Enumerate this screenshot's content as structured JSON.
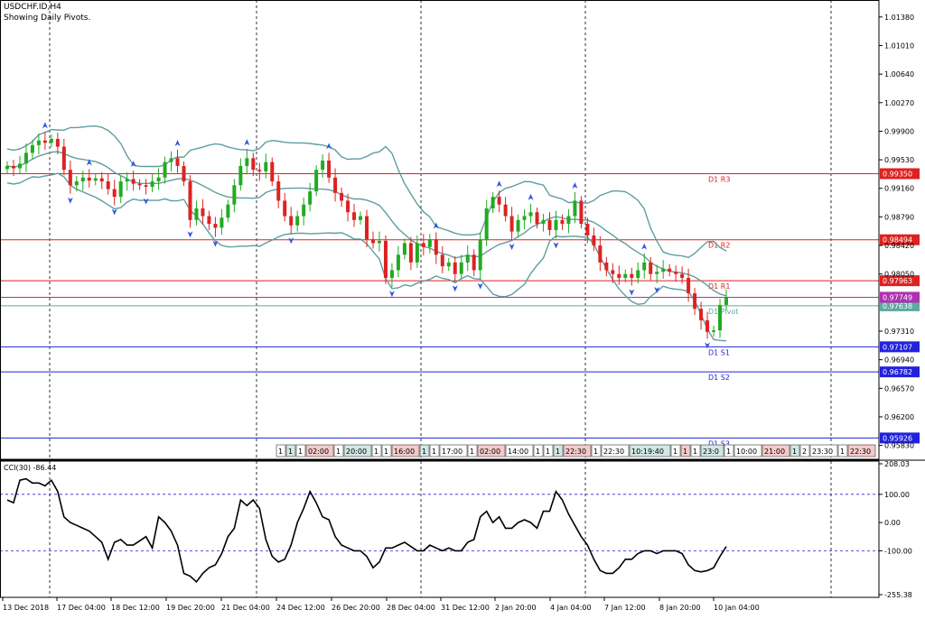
{
  "chart_data": {
    "type": "candlestick",
    "title": "USDCHF.ID,H4",
    "subtitle": "Showing Daily Pivots.",
    "price_axis": {
      "ylim": [
        0.9565,
        1.016
      ],
      "ticks": [
        "1.01380",
        "1.01010",
        "1.00640",
        "1.00270",
        "0.99900",
        "0.99530",
        "0.99160",
        "0.98790",
        "0.98420",
        "0.98050",
        "0.97310",
        "0.96940",
        "0.96570",
        "0.96200",
        "0.95830"
      ]
    },
    "x_axis": {
      "ticks": [
        "13 Dec 2018",
        "17 Dec 04:00",
        "18 Dec 12:00",
        "19 Dec 20:00",
        "21 Dec 04:00",
        "24 Dec 12:00",
        "26 Dec 20:00",
        "28 Dec 04:00",
        "31 Dec 12:00",
        "2 Jan 20:00",
        "4 Jan 04:00",
        "7 Jan 12:00",
        "8 Jan 20:00",
        "10 Jan 04:00"
      ]
    },
    "candles_close": [
      0.9945,
      0.9942,
      0.9948,
      0.9962,
      0.9972,
      0.9978,
      0.9975,
      0.998,
      0.997,
      0.994,
      0.992,
      0.9925,
      0.993,
      0.9926,
      0.9929,
      0.9925,
      0.9915,
      0.9905,
      0.9925,
      0.9928,
      0.9922,
      0.992,
      0.9918,
      0.9925,
      0.993,
      0.995,
      0.9955,
      0.9945,
      0.9925,
      0.9875,
      0.989,
      0.988,
      0.987,
      0.9865,
      0.9878,
      0.9895,
      0.992,
      0.9945,
      0.9955,
      0.994,
      0.9938,
      0.995,
      0.9925,
      0.99,
      0.988,
      0.9868,
      0.988,
      0.9895,
      0.9912,
      0.994,
      0.9952,
      0.993,
      0.991,
      0.99,
      0.9885,
      0.9875,
      0.988,
      0.985,
      0.9845,
      0.9848,
      0.98,
      0.981,
      0.983,
      0.9845,
      0.982,
      0.9845,
      0.984,
      0.985,
      0.983,
      0.9815,
      0.982,
      0.9805,
      0.982,
      0.983,
      0.981,
      0.985,
      0.989,
      0.9905,
      0.9895,
      0.988,
      0.986,
      0.9875,
      0.988,
      0.9885,
      0.987,
      0.9875,
      0.9862,
      0.9875,
      0.987,
      0.988,
      0.99,
      0.987,
      0.9855,
      0.9842,
      0.982,
      0.981,
      0.9805,
      0.98,
      0.9805,
      0.98,
      0.981,
      0.982,
      0.9805,
      0.9808,
      0.9812,
      0.9808,
      0.9805,
      0.98,
      0.978,
      0.976,
      0.9745,
      0.973,
      0.9732,
      0.9765,
      0.9775
    ],
    "indicator": {
      "label": "CCI(30) -86.44",
      "ylim": [
        -255.38,
        208.03
      ],
      "ticks": [
        "208.03",
        "100.00",
        "0.00",
        "-100.00",
        "-255.38"
      ],
      "values": [
        80,
        70,
        150,
        155,
        140,
        140,
        130,
        150,
        110,
        20,
        0,
        -10,
        -20,
        -30,
        -50,
        -70,
        -130,
        -70,
        -60,
        -80,
        -80,
        -65,
        -50,
        -90,
        20,
        0,
        -30,
        -80,
        -180,
        -190,
        -210,
        -180,
        -160,
        -150,
        -110,
        -50,
        -20,
        80,
        60,
        80,
        50,
        -60,
        -120,
        -140,
        -130,
        -80,
        0,
        50,
        110,
        70,
        20,
        10,
        -50,
        -80,
        -90,
        -100,
        -100,
        -120,
        -160,
        -140,
        -90,
        -90,
        -80,
        -70,
        -85,
        -100,
        -100,
        -80,
        -90,
        -100,
        -90,
        -100,
        -100,
        -70,
        -60,
        20,
        40,
        0,
        20,
        -20,
        -20,
        0,
        10,
        0,
        -20,
        40,
        40,
        110,
        80,
        30,
        -10,
        -50,
        -80,
        -130,
        -170,
        -180,
        -180,
        -160,
        -130,
        -130,
        -110,
        -100,
        -100,
        -110,
        -100,
        -100,
        -100,
        -110,
        -150,
        -170,
        -175,
        -170,
        -160,
        -120,
        -85
      ]
    },
    "pivots": [
      {
        "name": "D1 R3",
        "value": "0.99350",
        "color": "#dd2222"
      },
      {
        "name": "D1 R2",
        "value": "0.98494",
        "color": "#dd2222"
      },
      {
        "name": "D1 R1",
        "value": "0.97963",
        "color": "#dd2222"
      },
      {
        "name": "D1 Pivot",
        "value": "0.97638",
        "color": "#60a8a0"
      },
      {
        "name": "D1 S1",
        "value": "0.97107",
        "color": "#2222dd"
      },
      {
        "name": "D1 S2",
        "value": "0.96782",
        "color": "#2222dd"
      },
      {
        "name": "D1 S3",
        "value": "0.95926",
        "color": "#2222dd"
      }
    ],
    "current_price": {
      "value": "0.97749",
      "color": "#b030b0"
    },
    "colors": {
      "bull": "#22aa22",
      "bear": "#dd2222",
      "bands": "#5f9ea0",
      "fractal": "#3355dd",
      "grid": "#000000",
      "cci_line": "#000000",
      "cci_levels": "#2222dd"
    },
    "time_labels": [
      "1",
      "1",
      "1",
      "02:00",
      "1",
      "20:00",
      "1",
      "1",
      "16:00",
      "1",
      "1",
      "17:00",
      "1",
      "02:00",
      "14:00",
      "1",
      "1",
      "1",
      "22:30",
      "1",
      "22:30",
      "10:19:40",
      "1",
      "1",
      "1",
      "23:0",
      "1",
      "10:00",
      "21:00",
      "1",
      "2",
      "23:30",
      "1",
      "22:30"
    ]
  }
}
